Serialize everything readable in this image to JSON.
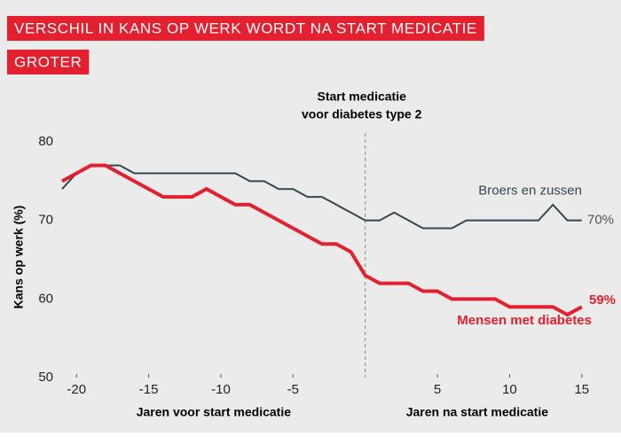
{
  "chart_data": {
    "type": "line",
    "title": [
      "VERSCHIL IN KANS OP WERK WORDT NA START MEDICATIE",
      "GROTER"
    ],
    "y_label": "Kans op werk (%)",
    "x_group_labels": [
      "Jaren voor start medicatie",
      "Jaren na start medicatie"
    ],
    "annotation": {
      "text": [
        "Start medicatie",
        "voor diabetes type 2"
      ],
      "x": 0
    },
    "x": [
      -21,
      -20,
      -19,
      -18,
      -17,
      -16,
      -15,
      -14,
      -13,
      -12,
      -11,
      -10,
      -9,
      -8,
      -7,
      -6,
      -5,
      -4,
      -3,
      -2,
      -1,
      0,
      1,
      2,
      3,
      4,
      5,
      6,
      7,
      8,
      9,
      10,
      11,
      12,
      13,
      14,
      15
    ],
    "series": [
      {
        "name": "Broers en zussen",
        "color": "#34474f",
        "end_label": "70%",
        "values": [
          74,
          76,
          77,
          77,
          77,
          76,
          76,
          76,
          76,
          76,
          76,
          76,
          76,
          75,
          75,
          74,
          74,
          73,
          73,
          72,
          71,
          70,
          70,
          71,
          70,
          69,
          69,
          69,
          70,
          70,
          70,
          70,
          70,
          70,
          72,
          70,
          70
        ]
      },
      {
        "name": "Mensen met diabetes",
        "color": "#e3202f",
        "end_label": "59%",
        "values": [
          75,
          76,
          77,
          77,
          76,
          75,
          74,
          73,
          73,
          73,
          74,
          73,
          72,
          72,
          71,
          70,
          69,
          68,
          67,
          67,
          66,
          63,
          62,
          62,
          62,
          61,
          61,
          60,
          60,
          60,
          60,
          59,
          59,
          59,
          59,
          58,
          59
        ]
      }
    ],
    "xlim": [
      -21,
      15.75
    ],
    "ylim": [
      50,
      80
    ],
    "xticks": [
      -20,
      -15,
      -10,
      -5,
      5,
      10,
      15
    ],
    "yticks": [
      50,
      60,
      70,
      80
    ],
    "grid": false
  }
}
